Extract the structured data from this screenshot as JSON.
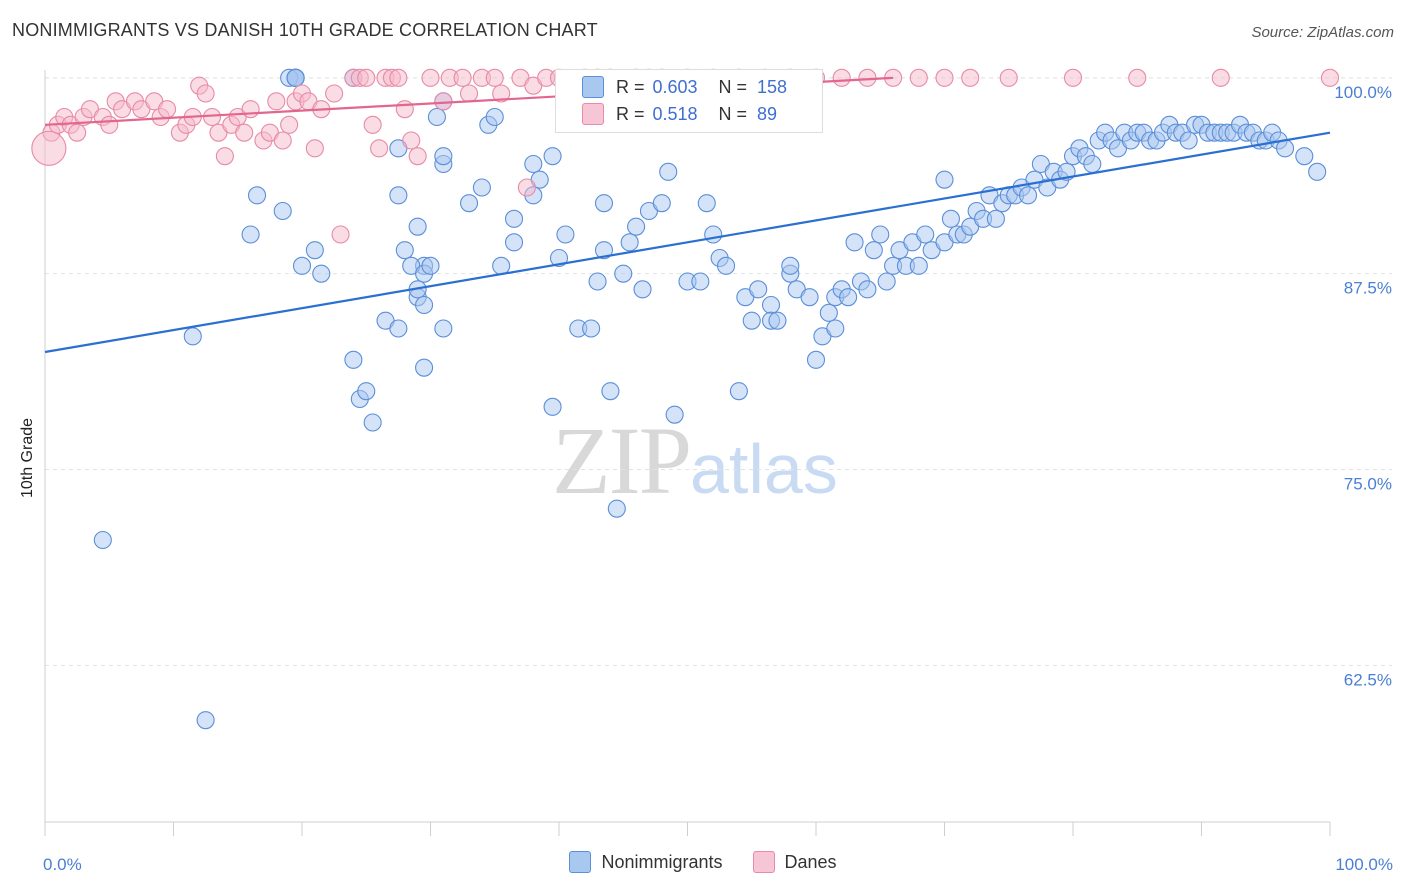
{
  "header": {
    "title": "NONIMMIGRANTS VS DANISH 10TH GRADE CORRELATION CHART",
    "source": "Source: ZipAtlas.com"
  },
  "watermark": {
    "zip": "ZIP",
    "atlas": "atlas"
  },
  "legend": {
    "rows": [
      {
        "r_label": "R =",
        "r_value": "0.603",
        "n_label": "N =",
        "n_value": "158"
      },
      {
        "r_label": "R =",
        "r_value": "0.518",
        "n_label": "N =",
        "n_value": "89"
      }
    ]
  },
  "colors": {
    "blue_fill": "#a9c8f0",
    "blue_stroke": "#5b8fd9",
    "blue_line": "#2a6fd1",
    "pink_fill": "#f6b9cc",
    "pink_stroke": "#e88aa8",
    "pink_line": "#e2668f"
  },
  "chart_data": {
    "type": "scatter",
    "title": "NONIMMIGRANTS VS DANISH 10TH GRADE CORRELATION CHART",
    "xlabel": "",
    "ylabel": "10th Grade",
    "xlim": [
      0,
      100
    ],
    "ylim": [
      52.5,
      100.5
    ],
    "x_tick_labels": [
      "0.0%",
      "100.0%"
    ],
    "y_ticks": [
      62.5,
      75.0,
      87.5,
      100.0
    ],
    "y_tick_labels": [
      "62.5%",
      "75.0%",
      "87.5%",
      "100.0%"
    ],
    "grid": true,
    "legend_position": "top-center",
    "series": [
      {
        "name": "Nonimmigrants",
        "R": 0.603,
        "N": 158,
        "trend": {
          "x": [
            0,
            100
          ],
          "y": [
            82.5,
            96.5
          ]
        },
        "points": [
          [
            4.5,
            70.5
          ],
          [
            11.5,
            83.5
          ],
          [
            12.5,
            59.0
          ],
          [
            19.5,
            100
          ],
          [
            19.5,
            100
          ],
          [
            19.5,
            100
          ],
          [
            19.0,
            100
          ],
          [
            19.5,
            100
          ],
          [
            19.5,
            100
          ],
          [
            16.0,
            90.0
          ],
          [
            16.5,
            92.5
          ],
          [
            20.0,
            88.0
          ],
          [
            21.5,
            87.5
          ],
          [
            24.0,
            100
          ],
          [
            24.0,
            82.0
          ],
          [
            24.5,
            79.5
          ],
          [
            25.0,
            80.0
          ],
          [
            25.5,
            78.0
          ],
          [
            26.5,
            84.5
          ],
          [
            27.5,
            84.0
          ],
          [
            27.5,
            95.5
          ],
          [
            27.5,
            92.5
          ],
          [
            28.0,
            89.0
          ],
          [
            29.5,
            88.0
          ],
          [
            29.0,
            90.5
          ],
          [
            30.5,
            97.5
          ],
          [
            31.0,
            98.5
          ],
          [
            31.0,
            94.5
          ],
          [
            31.0,
            95.0
          ],
          [
            29.0,
            86.0
          ],
          [
            28.5,
            88.0
          ],
          [
            29.5,
            87.5
          ],
          [
            29.0,
            86.5
          ],
          [
            29.5,
            85.5
          ],
          [
            30.0,
            88.0
          ],
          [
            29.5,
            81.5
          ],
          [
            31.0,
            84.0
          ],
          [
            33.0,
            92.0
          ],
          [
            34.0,
            93.0
          ],
          [
            34.5,
            97.0
          ],
          [
            35.0,
            97.5
          ],
          [
            36.5,
            91.0
          ],
          [
            35.5,
            88.0
          ],
          [
            36.5,
            89.5
          ],
          [
            38.0,
            94.5
          ],
          [
            38.5,
            93.5
          ],
          [
            38.0,
            92.5
          ],
          [
            39.5,
            95.0
          ],
          [
            39.5,
            79.0
          ],
          [
            40.0,
            88.5
          ],
          [
            40.5,
            90.0
          ],
          [
            41.5,
            84.0
          ],
          [
            42.5,
            84.0
          ],
          [
            43.0,
            87.0
          ],
          [
            43.5,
            92.0
          ],
          [
            43.5,
            89.0
          ],
          [
            44.0,
            80.0
          ],
          [
            44.5,
            72.5
          ],
          [
            45.0,
            87.5
          ],
          [
            45.5,
            89.5
          ],
          [
            46.0,
            90.5
          ],
          [
            46.5,
            86.5
          ],
          [
            47.0,
            91.5
          ],
          [
            48.0,
            92.0
          ],
          [
            48.5,
            94.0
          ],
          [
            49.0,
            78.5
          ],
          [
            50.0,
            87.0
          ],
          [
            51.0,
            87.0
          ],
          [
            51.5,
            92.0
          ],
          [
            52.0,
            90.0
          ],
          [
            52.5,
            88.5
          ],
          [
            53.0,
            88.0
          ],
          [
            54.0,
            80.0
          ],
          [
            54.5,
            86.0
          ],
          [
            55.0,
            84.5
          ],
          [
            55.5,
            86.5
          ],
          [
            56.5,
            85.5
          ],
          [
            56.5,
            84.5
          ],
          [
            57.0,
            84.5
          ],
          [
            58.0,
            87.5
          ],
          [
            58.0,
            88.0
          ],
          [
            58.5,
            86.5
          ],
          [
            59.5,
            86.0
          ],
          [
            60.0,
            82.0
          ],
          [
            60.5,
            83.5
          ],
          [
            61.0,
            85.0
          ],
          [
            61.5,
            86.0
          ],
          [
            62.0,
            86.5
          ],
          [
            62.5,
            86.0
          ],
          [
            63.5,
            87.0
          ],
          [
            64.0,
            86.5
          ],
          [
            64.5,
            89.0
          ],
          [
            65.0,
            90.0
          ],
          [
            65.5,
            87.0
          ],
          [
            66.0,
            88.0
          ],
          [
            66.5,
            89.0
          ],
          [
            67.0,
            88.0
          ],
          [
            67.5,
            89.5
          ],
          [
            68.0,
            88.0
          ],
          [
            68.5,
            90.0
          ],
          [
            69.0,
            89.0
          ],
          [
            70.0,
            89.5
          ],
          [
            70.5,
            91.0
          ],
          [
            71.0,
            90.0
          ],
          [
            71.5,
            90.0
          ],
          [
            72.0,
            90.5
          ],
          [
            72.5,
            91.5
          ],
          [
            73.0,
            91.0
          ],
          [
            73.5,
            92.5
          ],
          [
            74.0,
            91.0
          ],
          [
            74.5,
            92.0
          ],
          [
            75.0,
            92.5
          ],
          [
            75.5,
            92.5
          ],
          [
            76.0,
            93.0
          ],
          [
            76.5,
            92.5
          ],
          [
            77.0,
            93.5
          ],
          [
            77.5,
            94.5
          ],
          [
            78.0,
            93.0
          ],
          [
            78.5,
            94.0
          ],
          [
            79.0,
            93.5
          ],
          [
            79.5,
            94.0
          ],
          [
            80.0,
            95.0
          ],
          [
            80.5,
            95.5
          ],
          [
            81.0,
            95.0
          ],
          [
            81.5,
            94.5
          ],
          [
            82.0,
            96.0
          ],
          [
            82.5,
            96.5
          ],
          [
            83.0,
            96.0
          ],
          [
            83.5,
            95.5
          ],
          [
            84.0,
            96.5
          ],
          [
            84.5,
            96.0
          ],
          [
            85.0,
            96.5
          ],
          [
            85.5,
            96.5
          ],
          [
            86.0,
            96.0
          ],
          [
            86.5,
            96.0
          ],
          [
            87.0,
            96.5
          ],
          [
            87.5,
            97.0
          ],
          [
            88.0,
            96.5
          ],
          [
            88.5,
            96.5
          ],
          [
            89.0,
            96.0
          ],
          [
            89.5,
            97.0
          ],
          [
            90.0,
            97.0
          ],
          [
            90.5,
            96.5
          ],
          [
            91.0,
            96.5
          ],
          [
            91.5,
            96.5
          ],
          [
            92.0,
            96.5
          ],
          [
            92.5,
            96.5
          ],
          [
            93.0,
            97.0
          ],
          [
            93.5,
            96.5
          ],
          [
            94.0,
            96.5
          ],
          [
            94.5,
            96.0
          ],
          [
            95.0,
            96.0
          ],
          [
            95.5,
            96.5
          ],
          [
            96.0,
            96.0
          ],
          [
            96.5,
            95.5
          ],
          [
            98.0,
            95.0
          ],
          [
            99.0,
            94.0
          ],
          [
            63.0,
            89.5
          ],
          [
            61.5,
            84.0
          ],
          [
            70.0,
            93.5
          ],
          [
            21.0,
            89.0
          ],
          [
            18.5,
            91.5
          ]
        ]
      },
      {
        "name": "Danes",
        "R": 0.518,
        "N": 89,
        "trend": {
          "x": [
            0,
            66
          ],
          "y": [
            97.0,
            100.0
          ]
        },
        "points": [
          [
            0.5,
            96.5
          ],
          [
            1.0,
            97.0
          ],
          [
            1.5,
            97.5
          ],
          [
            2.0,
            97.0
          ],
          [
            2.5,
            96.5
          ],
          [
            3.0,
            97.5
          ],
          [
            3.5,
            98.0
          ],
          [
            4.5,
            97.5
          ],
          [
            5.0,
            97.0
          ],
          [
            5.5,
            98.5
          ],
          [
            6.0,
            98.0
          ],
          [
            7.0,
            98.5
          ],
          [
            7.5,
            98.0
          ],
          [
            8.5,
            98.5
          ],
          [
            9.0,
            97.5
          ],
          [
            9.5,
            98.0
          ],
          [
            10.5,
            96.5
          ],
          [
            11.0,
            97.0
          ],
          [
            11.5,
            97.5
          ],
          [
            12.0,
            99.5
          ],
          [
            12.5,
            99.0
          ],
          [
            13.0,
            97.5
          ],
          [
            13.5,
            96.5
          ],
          [
            14.0,
            95.0
          ],
          [
            14.5,
            97.0
          ],
          [
            15.0,
            97.5
          ],
          [
            15.5,
            96.5
          ],
          [
            16.0,
            98.0
          ],
          [
            17.0,
            96.0
          ],
          [
            17.5,
            96.5
          ],
          [
            18.0,
            98.5
          ],
          [
            18.5,
            96.0
          ],
          [
            19.0,
            97.0
          ],
          [
            19.5,
            98.5
          ],
          [
            20.0,
            99.0
          ],
          [
            20.5,
            98.5
          ],
          [
            21.0,
            95.5
          ],
          [
            21.5,
            98.0
          ],
          [
            22.5,
            99.0
          ],
          [
            23.0,
            90.0
          ],
          [
            24.0,
            100
          ],
          [
            24.5,
            100
          ],
          [
            25.0,
            100
          ],
          [
            25.5,
            97.0
          ],
          [
            26.0,
            95.5
          ],
          [
            26.5,
            100
          ],
          [
            27.0,
            100
          ],
          [
            27.5,
            100
          ],
          [
            28.0,
            98.0
          ],
          [
            28.5,
            96.0
          ],
          [
            29.0,
            95.0
          ],
          [
            30.0,
            100
          ],
          [
            31.0,
            98.5
          ],
          [
            31.5,
            100
          ],
          [
            32.5,
            100
          ],
          [
            33.0,
            99.0
          ],
          [
            34.0,
            100
          ],
          [
            35.0,
            100
          ],
          [
            35.5,
            99.0
          ],
          [
            37.0,
            100
          ],
          [
            37.5,
            93.0
          ],
          [
            38.0,
            99.5
          ],
          [
            39.0,
            100
          ],
          [
            40.0,
            100
          ],
          [
            40.5,
            99.5
          ],
          [
            42.0,
            100
          ],
          [
            43.0,
            100
          ],
          [
            44.0,
            100
          ],
          [
            46.0,
            100
          ],
          [
            47.0,
            100
          ],
          [
            48.0,
            100
          ],
          [
            50.0,
            100
          ],
          [
            52.0,
            100
          ],
          [
            54.0,
            100
          ],
          [
            56.0,
            100
          ],
          [
            58.0,
            100
          ],
          [
            60.0,
            100
          ],
          [
            62.0,
            100
          ],
          [
            64.0,
            100
          ],
          [
            66.0,
            100
          ],
          [
            68.0,
            100
          ],
          [
            70.0,
            100
          ],
          [
            72.0,
            100
          ],
          [
            75.0,
            100
          ],
          [
            80.0,
            100
          ],
          [
            85.0,
            100
          ],
          [
            91.5,
            100
          ],
          [
            100,
            100
          ],
          [
            0.3,
            95.5
          ]
        ]
      }
    ]
  },
  "bottom_legend": {
    "items": [
      {
        "label": "Nonimmigrants"
      },
      {
        "label": "Danes"
      }
    ]
  }
}
